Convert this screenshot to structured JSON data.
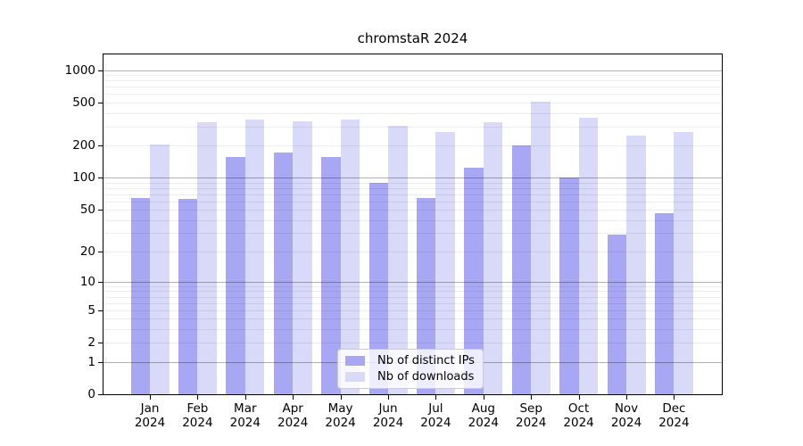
{
  "chart_data": {
    "type": "bar",
    "title": "chromstaR 2024",
    "x_categories": [
      "Jan",
      "Feb",
      "Mar",
      "Apr",
      "May",
      "Jun",
      "Jul",
      "Aug",
      "Sep",
      "Oct",
      "Nov",
      "Dec"
    ],
    "x_year": "2024",
    "series": [
      {
        "key": "distinct-ips",
        "name": "Nb of distinct IPs",
        "color": "#a7a7f3",
        "values": [
          65,
          63,
          156,
          171,
          155,
          89,
          64,
          124,
          200,
          100,
          29,
          46
        ]
      },
      {
        "key": "downloads",
        "name": "Nb of downloads",
        "color": "#d9d9f8",
        "values": [
          205,
          330,
          345,
          335,
          350,
          305,
          265,
          330,
          510,
          360,
          248,
          265
        ]
      }
    ],
    "y_scale": "log1p",
    "y_ticks": [
      0,
      1,
      2,
      5,
      10,
      20,
      50,
      100,
      200,
      500,
      1000
    ],
    "y_major_gridlines": [
      1,
      10,
      100,
      1000
    ],
    "y_minor_gridlines": [
      2,
      3,
      4,
      5,
      6,
      7,
      8,
      9,
      20,
      30,
      40,
      50,
      60,
      70,
      80,
      90,
      200,
      300,
      400,
      500,
      600,
      700,
      800,
      900
    ],
    "ylim": [
      0,
      1200
    ],
    "grid": true,
    "legend_position": "lower center",
    "colors": {
      "axis": "#000000",
      "major_grid": "rgba(0,0,0,0.30)",
      "minor_grid": "rgba(0,0,0,0.07)",
      "legend_border": "#cccccc"
    }
  }
}
